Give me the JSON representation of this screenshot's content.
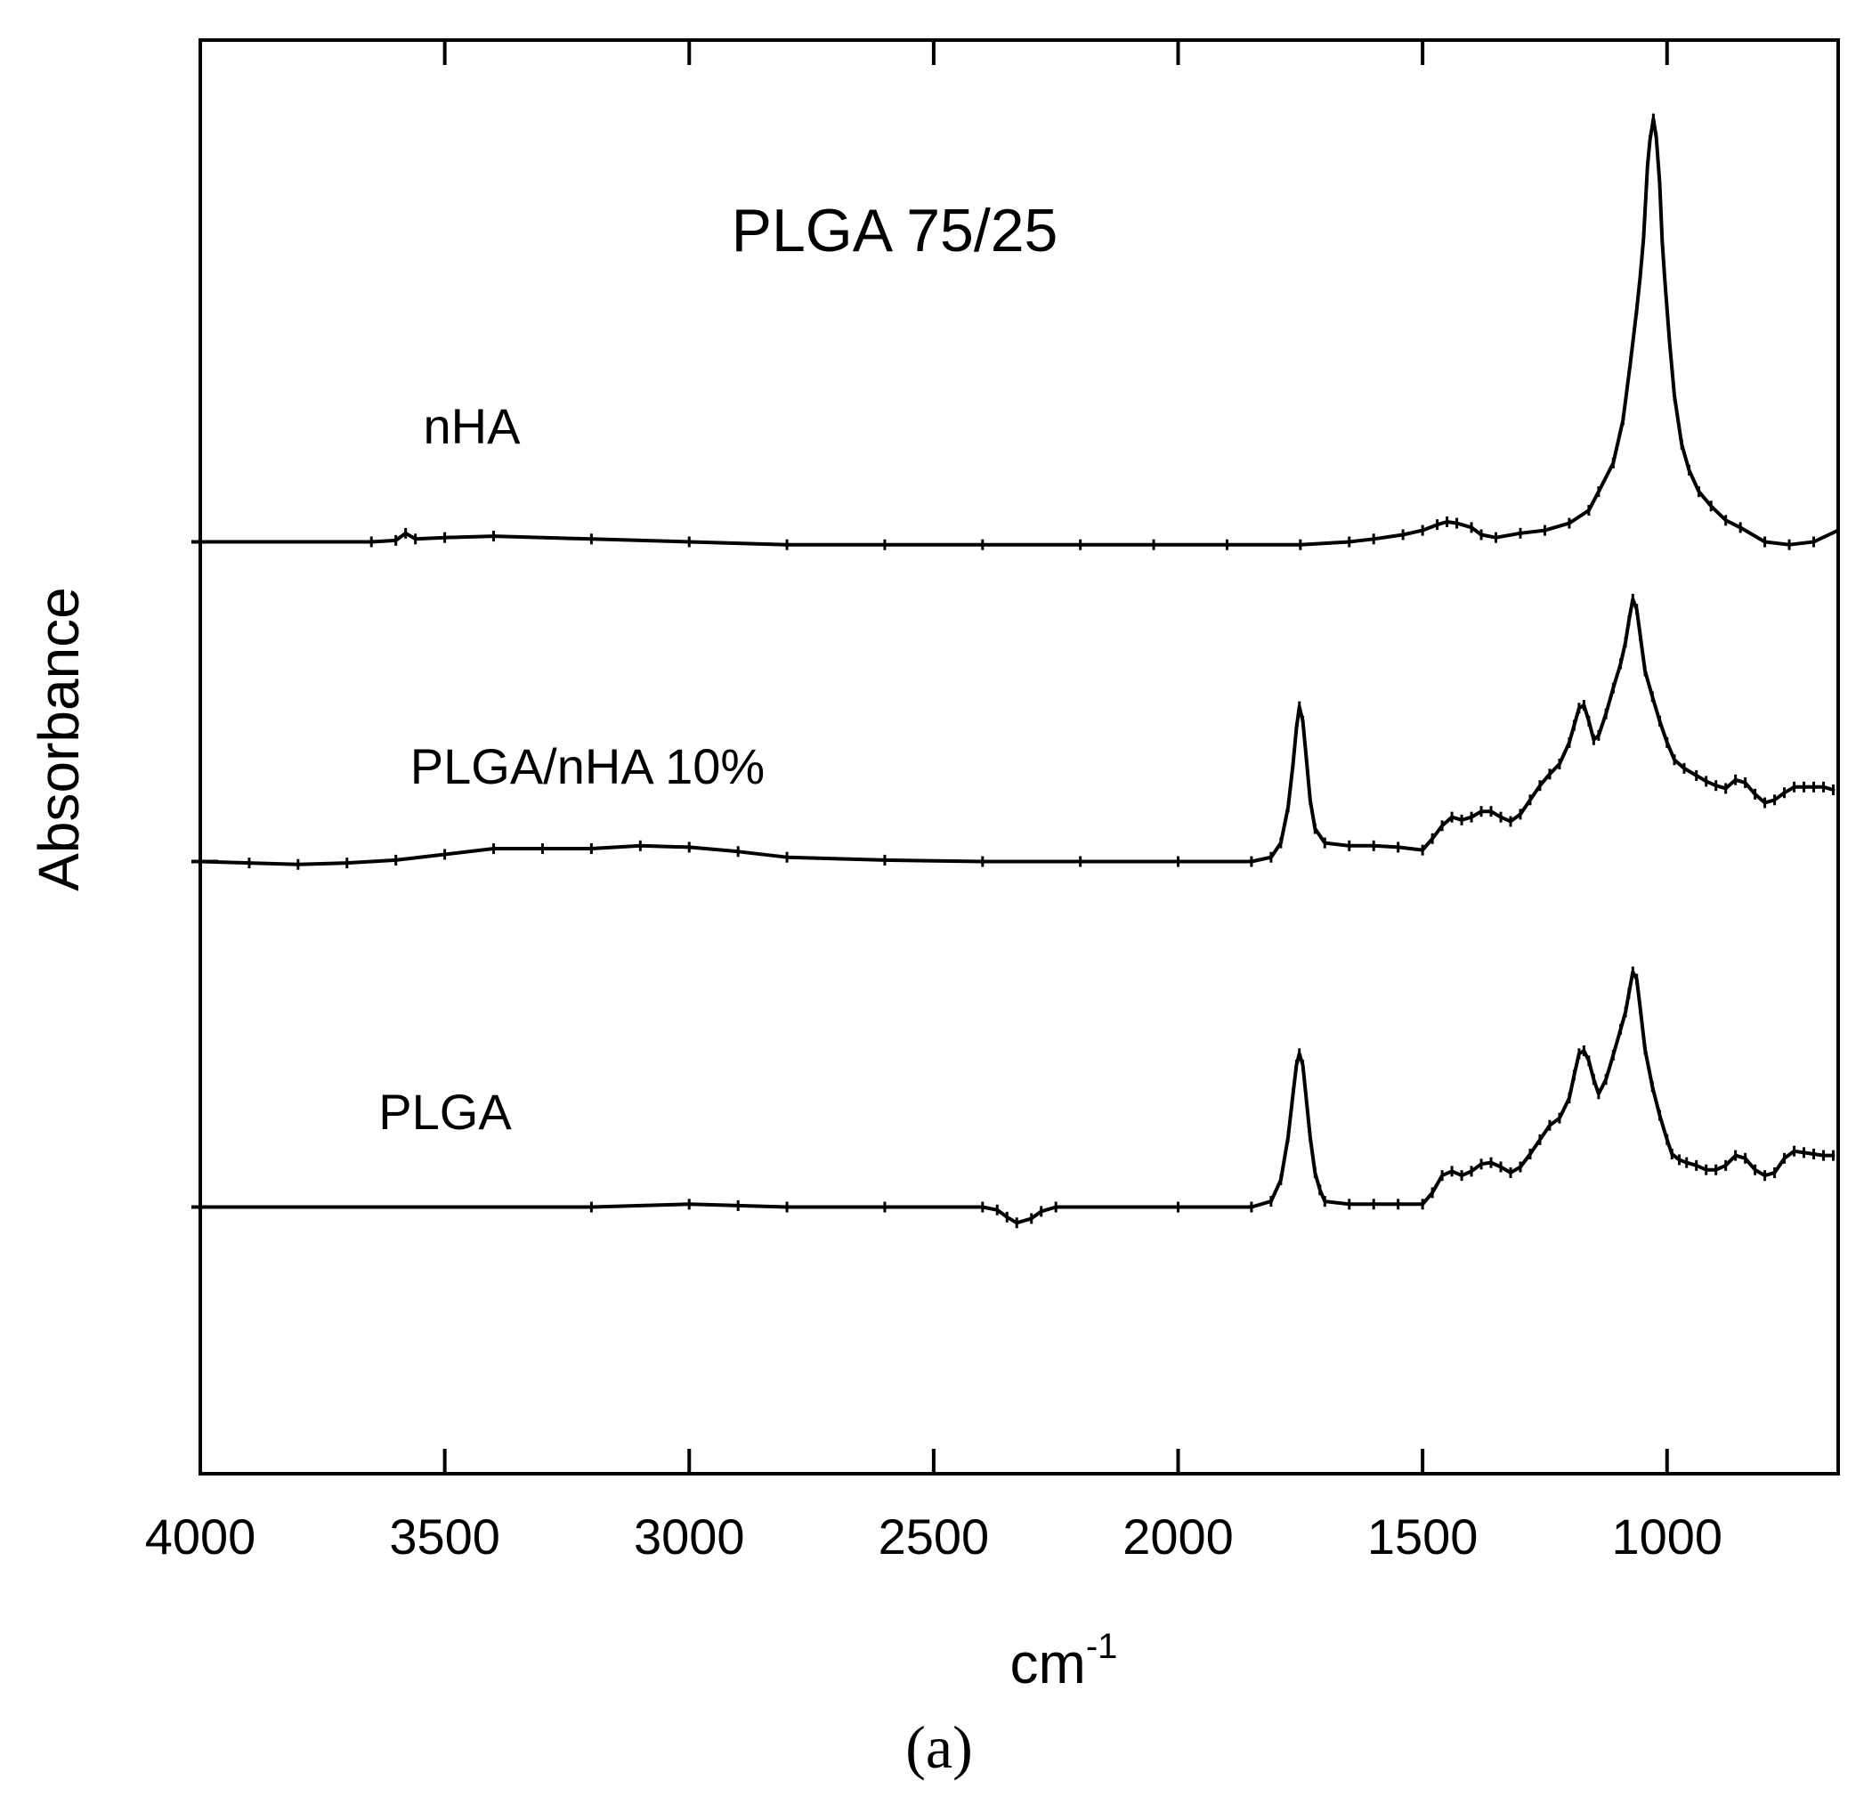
{
  "chart_data": {
    "type": "line",
    "title": "PLGA 75/25",
    "xlabel": "cm",
    "xlabel_superscript": "-1",
    "ylabel": "Absorbance",
    "panel_label": "(a)",
    "xlim": [
      4000,
      650
    ],
    "x_reversed": true,
    "x_ticks": [
      4000,
      3500,
      3000,
      2500,
      2000,
      1500,
      1000
    ],
    "y_ticks_labeled": false,
    "ylim": [
      0,
      1
    ],
    "grid": false,
    "legend": "none",
    "series": [
      {
        "name": "nHA",
        "points": [
          [
            4000,
            0.65
          ],
          [
            3650,
            0.65
          ],
          [
            3600,
            0.651
          ],
          [
            3580,
            0.656
          ],
          [
            3560,
            0.652
          ],
          [
            3500,
            0.653
          ],
          [
            3400,
            0.654
          ],
          [
            3200,
            0.652
          ],
          [
            3000,
            0.65
          ],
          [
            2800,
            0.648
          ],
          [
            2600,
            0.648
          ],
          [
            2400,
            0.648
          ],
          [
            2200,
            0.648
          ],
          [
            2050,
            0.648
          ],
          [
            1900,
            0.648
          ],
          [
            1750,
            0.648
          ],
          [
            1650,
            0.65
          ],
          [
            1600,
            0.652
          ],
          [
            1540,
            0.655
          ],
          [
            1500,
            0.658
          ],
          [
            1470,
            0.662
          ],
          [
            1450,
            0.664
          ],
          [
            1430,
            0.663
          ],
          [
            1400,
            0.66
          ],
          [
            1380,
            0.655
          ],
          [
            1350,
            0.653
          ],
          [
            1300,
            0.656
          ],
          [
            1250,
            0.658
          ],
          [
            1200,
            0.663
          ],
          [
            1160,
            0.672
          ],
          [
            1140,
            0.685
          ],
          [
            1110,
            0.705
          ],
          [
            1090,
            0.735
          ],
          [
            1075,
            0.775
          ],
          [
            1062,
            0.812
          ],
          [
            1055,
            0.835
          ],
          [
            1048,
            0.862
          ],
          [
            1040,
            0.912
          ],
          [
            1035,
            0.93
          ],
          [
            1028,
            0.945
          ],
          [
            1022,
            0.932
          ],
          [
            1015,
            0.9
          ],
          [
            1010,
            0.86
          ],
          [
            1005,
            0.835
          ],
          [
            995,
            0.79
          ],
          [
            985,
            0.752
          ],
          [
            970,
            0.718
          ],
          [
            955,
            0.7
          ],
          [
            935,
            0.685
          ],
          [
            910,
            0.675
          ],
          [
            880,
            0.665
          ],
          [
            850,
            0.66
          ],
          [
            800,
            0.65
          ],
          [
            750,
            0.648
          ],
          [
            700,
            0.65
          ],
          [
            650,
            0.658
          ]
        ]
      },
      {
        "name": "PLGA/nHA 10%",
        "points": [
          [
            4000,
            0.427
          ],
          [
            3900,
            0.426
          ],
          [
            3800,
            0.425
          ],
          [
            3700,
            0.426
          ],
          [
            3600,
            0.428
          ],
          [
            3500,
            0.432
          ],
          [
            3400,
            0.436
          ],
          [
            3300,
            0.436
          ],
          [
            3200,
            0.436
          ],
          [
            3100,
            0.438
          ],
          [
            3000,
            0.437
          ],
          [
            2900,
            0.434
          ],
          [
            2800,
            0.43
          ],
          [
            2600,
            0.428
          ],
          [
            2400,
            0.427
          ],
          [
            2200,
            0.427
          ],
          [
            2000,
            0.427
          ],
          [
            1850,
            0.427
          ],
          [
            1810,
            0.43
          ],
          [
            1790,
            0.44
          ],
          [
            1775,
            0.465
          ],
          [
            1765,
            0.495
          ],
          [
            1758,
            0.52
          ],
          [
            1752,
            0.535
          ],
          [
            1745,
            0.525
          ],
          [
            1738,
            0.5
          ],
          [
            1730,
            0.47
          ],
          [
            1720,
            0.45
          ],
          [
            1700,
            0.44
          ],
          [
            1650,
            0.438
          ],
          [
            1600,
            0.438
          ],
          [
            1550,
            0.437
          ],
          [
            1500,
            0.435
          ],
          [
            1480,
            0.443
          ],
          [
            1460,
            0.452
          ],
          [
            1440,
            0.458
          ],
          [
            1420,
            0.456
          ],
          [
            1400,
            0.458
          ],
          [
            1380,
            0.462
          ],
          [
            1360,
            0.462
          ],
          [
            1340,
            0.458
          ],
          [
            1320,
            0.455
          ],
          [
            1300,
            0.46
          ],
          [
            1280,
            0.47
          ],
          [
            1260,
            0.48
          ],
          [
            1240,
            0.488
          ],
          [
            1220,
            0.495
          ],
          [
            1200,
            0.51
          ],
          [
            1190,
            0.522
          ],
          [
            1180,
            0.534
          ],
          [
            1170,
            0.536
          ],
          [
            1160,
            0.525
          ],
          [
            1150,
            0.512
          ],
          [
            1140,
            0.515
          ],
          [
            1125,
            0.53
          ],
          [
            1110,
            0.548
          ],
          [
            1095,
            0.565
          ],
          [
            1085,
            0.58
          ],
          [
            1078,
            0.595
          ],
          [
            1070,
            0.61
          ],
          [
            1062,
            0.603
          ],
          [
            1055,
            0.585
          ],
          [
            1045,
            0.56
          ],
          [
            1030,
            0.542
          ],
          [
            1015,
            0.525
          ],
          [
            1000,
            0.51
          ],
          [
            985,
            0.498
          ],
          [
            965,
            0.492
          ],
          [
            940,
            0.487
          ],
          [
            920,
            0.483
          ],
          [
            900,
            0.48
          ],
          [
            880,
            0.478
          ],
          [
            860,
            0.484
          ],
          [
            840,
            0.482
          ],
          [
            820,
            0.474
          ],
          [
            800,
            0.468
          ],
          [
            780,
            0.47
          ],
          [
            760,
            0.475
          ],
          [
            740,
            0.479
          ],
          [
            720,
            0.479
          ],
          [
            700,
            0.479
          ],
          [
            680,
            0.479
          ],
          [
            660,
            0.477
          ]
        ]
      },
      {
        "name": "PLGA",
        "points": [
          [
            4000,
            0.186
          ],
          [
            3200,
            0.186
          ],
          [
            3000,
            0.188
          ],
          [
            2900,
            0.187
          ],
          [
            2800,
            0.186
          ],
          [
            2600,
            0.186
          ],
          [
            2400,
            0.186
          ],
          [
            2370,
            0.184
          ],
          [
            2350,
            0.179
          ],
          [
            2330,
            0.175
          ],
          [
            2300,
            0.178
          ],
          [
            2280,
            0.183
          ],
          [
            2250,
            0.186
          ],
          [
            2000,
            0.186
          ],
          [
            1850,
            0.186
          ],
          [
            1810,
            0.19
          ],
          [
            1790,
            0.205
          ],
          [
            1775,
            0.235
          ],
          [
            1765,
            0.265
          ],
          [
            1758,
            0.285
          ],
          [
            1752,
            0.293
          ],
          [
            1745,
            0.285
          ],
          [
            1738,
            0.262
          ],
          [
            1730,
            0.235
          ],
          [
            1720,
            0.21
          ],
          [
            1710,
            0.198
          ],
          [
            1700,
            0.19
          ],
          [
            1650,
            0.188
          ],
          [
            1600,
            0.188
          ],
          [
            1550,
            0.188
          ],
          [
            1500,
            0.188
          ],
          [
            1480,
            0.196
          ],
          [
            1460,
            0.208
          ],
          [
            1440,
            0.211
          ],
          [
            1420,
            0.208
          ],
          [
            1400,
            0.211
          ],
          [
            1380,
            0.216
          ],
          [
            1360,
            0.217
          ],
          [
            1340,
            0.214
          ],
          [
            1320,
            0.21
          ],
          [
            1300,
            0.214
          ],
          [
            1280,
            0.223
          ],
          [
            1260,
            0.233
          ],
          [
            1240,
            0.243
          ],
          [
            1220,
            0.248
          ],
          [
            1200,
            0.262
          ],
          [
            1190,
            0.278
          ],
          [
            1180,
            0.293
          ],
          [
            1170,
            0.295
          ],
          [
            1160,
            0.288
          ],
          [
            1150,
            0.275
          ],
          [
            1140,
            0.265
          ],
          [
            1125,
            0.275
          ],
          [
            1110,
            0.292
          ],
          [
            1095,
            0.31
          ],
          [
            1085,
            0.322
          ],
          [
            1078,
            0.335
          ],
          [
            1070,
            0.35
          ],
          [
            1062,
            0.345
          ],
          [
            1055,
            0.325
          ],
          [
            1045,
            0.296
          ],
          [
            1030,
            0.27
          ],
          [
            1015,
            0.25
          ],
          [
            1000,
            0.233
          ],
          [
            990,
            0.223
          ],
          [
            975,
            0.219
          ],
          [
            960,
            0.217
          ],
          [
            940,
            0.215
          ],
          [
            920,
            0.212
          ],
          [
            900,
            0.212
          ],
          [
            880,
            0.215
          ],
          [
            860,
            0.222
          ],
          [
            840,
            0.22
          ],
          [
            820,
            0.212
          ],
          [
            800,
            0.208
          ],
          [
            780,
            0.21
          ],
          [
            760,
            0.22
          ],
          [
            740,
            0.225
          ],
          [
            720,
            0.224
          ],
          [
            700,
            0.223
          ],
          [
            680,
            0.222
          ],
          [
            660,
            0.222
          ]
        ]
      }
    ]
  }
}
